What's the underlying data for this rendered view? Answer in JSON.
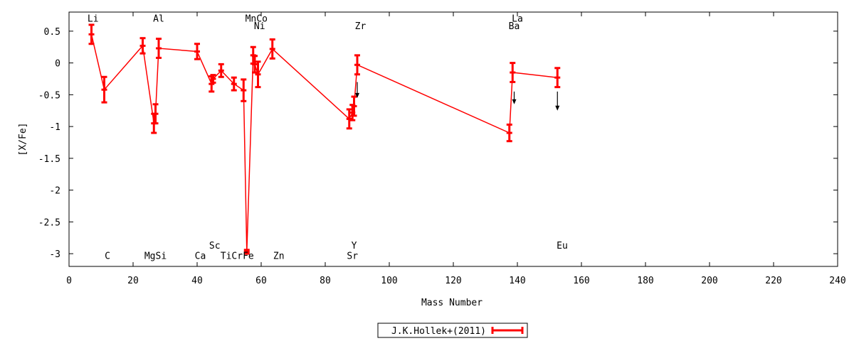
{
  "chart_data": {
    "type": "line",
    "xlabel": "Mass Number",
    "ylabel": "[X/Fe]",
    "xlim": [
      0,
      240
    ],
    "ylim": [
      -3.2,
      0.8
    ],
    "x_ticks": [
      0,
      20,
      40,
      60,
      80,
      100,
      120,
      140,
      160,
      180,
      200,
      220,
      240
    ],
    "y_ticks": [
      0.5,
      0,
      -0.5,
      -1,
      -1.5,
      -2,
      -2.5,
      -3
    ],
    "y_tick_labels": [
      "0.5",
      "0",
      "-0.5",
      "-1",
      "-1.5",
      "-2",
      "-2.5",
      "-3"
    ],
    "grid": false,
    "legend": {
      "position": "bottom-center",
      "entries": [
        "J.K.Hollek+(2011)"
      ]
    },
    "series": [
      {
        "name": "J.K.Hollek+(2011)",
        "color": "#ff0000",
        "points": [
          {
            "x": 7,
            "y": 0.45,
            "err": 0.15
          },
          {
            "x": 11,
            "y": -0.42,
            "err": 0.2
          },
          {
            "x": 23,
            "y": 0.27,
            "err": 0.12
          },
          {
            "x": 26.5,
            "y": -0.95,
            "err": 0.15
          },
          {
            "x": 27,
            "y": -0.8,
            "err": 0.15
          },
          {
            "x": 28,
            "y": 0.23,
            "err": 0.15
          },
          {
            "x": 40,
            "y": 0.18,
            "err": 0.12
          },
          {
            "x": 44.5,
            "y": -0.33,
            "err": 0.12
          },
          {
            "x": 45,
            "y": -0.25,
            "err": 0.06
          },
          {
            "x": 47.5,
            "y": -0.12,
            "err": 0.1
          },
          {
            "x": 51.5,
            "y": -0.33,
            "err": 0.1
          },
          {
            "x": 54.5,
            "y": -0.43,
            "err": 0.17
          },
          {
            "x": 55.5,
            "y": -2.97,
            "err": 0.03
          },
          {
            "x": 57.5,
            "y": 0.12,
            "err": 0.13
          },
          {
            "x": 58,
            "y": -0.02,
            "err": 0.13
          },
          {
            "x": 59,
            "y": -0.18,
            "err": 0.2
          },
          {
            "x": 63.5,
            "y": 0.22,
            "err": 0.15
          },
          {
            "x": 87.5,
            "y": -0.88,
            "err": 0.15
          },
          {
            "x": 88.5,
            "y": -0.78,
            "err": 0.12
          },
          {
            "x": 89,
            "y": -0.68,
            "err": 0.15
          },
          {
            "x": 90,
            "y": -0.03,
            "err": 0.15
          },
          {
            "x": 137.5,
            "y": -1.1,
            "err": 0.13
          },
          {
            "x": 138.5,
            "y": -0.15,
            "err": 0.15
          },
          {
            "x": 152.5,
            "y": -0.23,
            "err": 0.15
          }
        ]
      }
    ],
    "upper_limit_arrows": [
      {
        "x": 90,
        "y_from": -0.3,
        "y_to": -0.55
      },
      {
        "x": 139,
        "y_from": -0.45,
        "y_to": -0.65
      },
      {
        "x": 152.5,
        "y_from": -0.45,
        "y_to": -0.75
      }
    ],
    "element_labels": [
      {
        "text": "Li",
        "x": 7.5,
        "y": 0.65
      },
      {
        "text": "Al",
        "x": 28,
        "y": 0.65
      },
      {
        "text": "MnCo",
        "x": 58.5,
        "y": 0.65
      },
      {
        "text": "Ni",
        "x": 59.5,
        "y": 0.53
      },
      {
        "text": "Zr",
        "x": 91,
        "y": 0.53
      },
      {
        "text": "La",
        "x": 140,
        "y": 0.65
      },
      {
        "text": "Ba",
        "x": 139,
        "y": 0.53
      },
      {
        "text": "C",
        "x": 12,
        "y": -3.08
      },
      {
        "text": "MgSi",
        "x": 27,
        "y": -3.08
      },
      {
        "text": "Ca",
        "x": 41,
        "y": -3.08
      },
      {
        "text": "Sc",
        "x": 45.5,
        "y": -2.92
      },
      {
        "text": "TiCrFe",
        "x": 52.5,
        "y": -3.08
      },
      {
        "text": "Zn",
        "x": 65.5,
        "y": -3.08
      },
      {
        "text": "Y",
        "x": 89,
        "y": -2.92
      },
      {
        "text": "Sr",
        "x": 88.5,
        "y": -3.08
      },
      {
        "text": "Eu",
        "x": 154,
        "y": -2.92
      }
    ]
  }
}
